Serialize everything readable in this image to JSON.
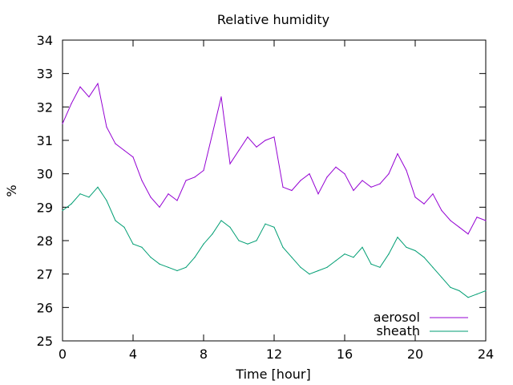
{
  "chart_data": {
    "type": "line",
    "title": "Relative humidity",
    "xlabel": "Time [hour]",
    "ylabel": "%",
    "xlim": [
      0,
      24
    ],
    "ylim": [
      25,
      34
    ],
    "xticks": [
      0,
      4,
      8,
      12,
      16,
      20,
      24
    ],
    "yticks": [
      25,
      26,
      27,
      28,
      29,
      30,
      31,
      32,
      33,
      34
    ],
    "grid": false,
    "legend_position": "bottom-right",
    "series": [
      {
        "name": "aerosol",
        "color": "#9400d3",
        "x": [
          0,
          0.5,
          1,
          1.5,
          2,
          2.5,
          3,
          3.5,
          4,
          4.5,
          5,
          5.5,
          6,
          6.5,
          7,
          7.5,
          8,
          8.5,
          9,
          9.5,
          10,
          10.5,
          11,
          11.5,
          12,
          12.5,
          13,
          13.5,
          14,
          14.5,
          15,
          15.5,
          16,
          16.5,
          17,
          17.5,
          18,
          18.5,
          19,
          19.5,
          20,
          20.5,
          21,
          21.5,
          22,
          22.5,
          23,
          23.5,
          24
        ],
        "y": [
          31.5,
          32.1,
          32.6,
          32.3,
          32.7,
          31.4,
          30.9,
          30.7,
          30.5,
          29.8,
          29.3,
          29.0,
          29.4,
          29.2,
          29.8,
          29.9,
          30.1,
          31.2,
          32.3,
          30.3,
          30.7,
          31.1,
          30.8,
          31.0,
          31.1,
          29.6,
          29.5,
          29.8,
          30.0,
          29.4,
          29.9,
          30.2,
          30.0,
          29.5,
          29.8,
          29.6,
          29.7,
          30.0,
          30.6,
          30.1,
          29.3,
          29.1,
          29.4,
          28.9,
          28.6,
          28.4,
          28.2,
          28.7,
          28.6
        ]
      },
      {
        "name": "sheath",
        "color": "#009e73",
        "x": [
          0,
          0.5,
          1,
          1.5,
          2,
          2.5,
          3,
          3.5,
          4,
          4.5,
          5,
          5.5,
          6,
          6.5,
          7,
          7.5,
          8,
          8.5,
          9,
          9.5,
          10,
          10.5,
          11,
          11.5,
          12,
          12.5,
          13,
          13.5,
          14,
          14.5,
          15,
          15.5,
          16,
          16.5,
          17,
          17.5,
          18,
          18.5,
          19,
          19.5,
          20,
          20.5,
          21,
          21.5,
          22,
          22.5,
          23,
          23.5,
          24
        ],
        "y": [
          28.9,
          29.1,
          29.4,
          29.3,
          29.6,
          29.2,
          28.6,
          28.4,
          27.9,
          27.8,
          27.5,
          27.3,
          27.2,
          27.1,
          27.2,
          27.5,
          27.9,
          28.2,
          28.6,
          28.4,
          28.0,
          27.9,
          28.0,
          28.5,
          28.4,
          27.8,
          27.5,
          27.2,
          27.0,
          27.1,
          27.2,
          27.4,
          27.6,
          27.5,
          27.8,
          27.3,
          27.2,
          27.6,
          28.1,
          27.8,
          27.7,
          27.5,
          27.2,
          26.9,
          26.6,
          26.5,
          26.3,
          26.4,
          26.5
        ]
      }
    ]
  }
}
